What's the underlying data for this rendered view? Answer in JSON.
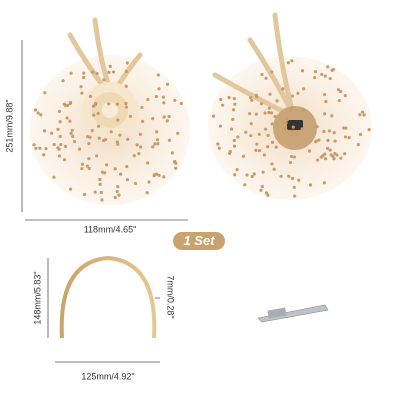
{
  "dimensions": {
    "fascinator_height": "251mm/9.88\"",
    "fascinator_width": "118mm/4.65\"",
    "set_label": "1 Set",
    "headband_height": "148mm/5.83\"",
    "headband_thickness": "7mm/0.28\"",
    "headband_width": "125mm/4.92\""
  }
}
